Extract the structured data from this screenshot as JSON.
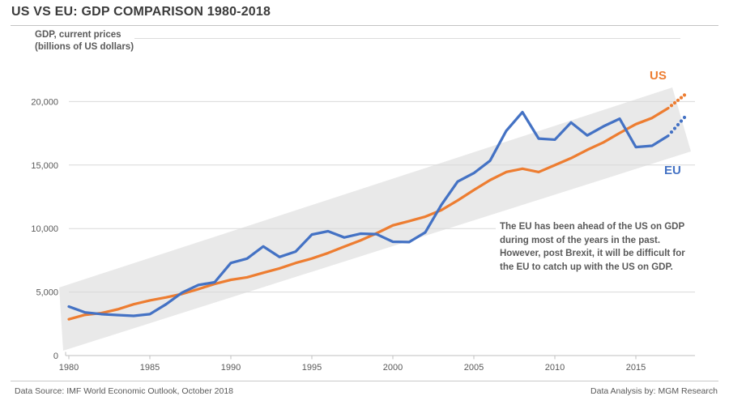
{
  "header": {
    "title": "US VS EU: GDP COMPARISON 1980-2018"
  },
  "chart": {
    "y_axis_title_line1": "GDP, current prices",
    "y_axis_title_line2": "(billions of US dollars)"
  },
  "chart_data": {
    "type": "line",
    "title": "US VS EU: GDP COMPARISON 1980-2018",
    "ylabel": "GDP, current prices (billions of US dollars)",
    "xlim": [
      1980,
      2018
    ],
    "ylim": [
      0,
      20000
    ],
    "grid": true,
    "y_ticks": [
      0,
      5000,
      10000,
      15000,
      20000
    ],
    "y_tick_labels": [
      "0",
      "5,000",
      "10,000",
      "15,000",
      "20,000"
    ],
    "x_ticks": [
      1980,
      1985,
      1990,
      1995,
      2000,
      2005,
      2010,
      2015
    ],
    "x_tick_labels": [
      "1980",
      "1985",
      "1990",
      "1995",
      "2000",
      "2005",
      "2010",
      "2015"
    ],
    "x": [
      1980,
      1981,
      1982,
      1983,
      1984,
      1985,
      1986,
      1987,
      1988,
      1989,
      1990,
      1991,
      1992,
      1993,
      1994,
      1995,
      1996,
      1997,
      1998,
      1999,
      2000,
      2001,
      2002,
      2003,
      2004,
      2005,
      2006,
      2007,
      2008,
      2009,
      2010,
      2011,
      2012,
      2013,
      2014,
      2015,
      2016,
      2017,
      2018
    ],
    "series": [
      {
        "name": "US",
        "color": "#ED7D31",
        "solid_until": 2017,
        "forecast_dotted_to": 2018,
        "values": [
          2857,
          3207,
          3344,
          3634,
          4038,
          4339,
          4580,
          4855,
          5236,
          5642,
          5963,
          6158,
          6520,
          6859,
          7287,
          7640,
          8073,
          8578,
          9063,
          9631,
          10252,
          10582,
          10936,
          11458,
          12214,
          13037,
          13815,
          14452,
          14713,
          14449,
          14992,
          15543,
          16197,
          16785,
          17522,
          18219,
          18707,
          19485,
          20513
        ]
      },
      {
        "name": "EU",
        "color": "#4472C4",
        "solid_until": 2017,
        "forecast_dotted_to": 2018,
        "values": [
          3857,
          3398,
          3264,
          3185,
          3123,
          3263,
          4038,
          4964,
          5557,
          5771,
          7289,
          7635,
          8593,
          7763,
          8186,
          9525,
          9790,
          9299,
          9596,
          9556,
          8960,
          8933,
          9697,
          11873,
          13699,
          14366,
          15343,
          17697,
          19165,
          17083,
          17000,
          18352,
          17333,
          18047,
          18648,
          16414,
          16520,
          17309,
          18751
        ]
      }
    ],
    "legend_position": "end-of-line labels (US top right, EU right)"
  },
  "annotation": {
    "lines": [
      "The EU has been ahead of the US on GDP",
      "during most of the years in the past.",
      "However, post Brexit, it will be difficult for",
      "the EU to catch up with the US on GDP."
    ]
  },
  "footer": {
    "source": "Data Source: IMF World Economic Outlook, October 2018",
    "credit": "Data Analysis by: MGM Research"
  },
  "theme": {
    "us_color": "#ED7D31",
    "eu_color": "#4472C4",
    "band_color": "#E9E9E9",
    "gridline_color": "#D9D9D9",
    "axis_color": "#BFBFBF",
    "tick_text_color": "#595959"
  }
}
